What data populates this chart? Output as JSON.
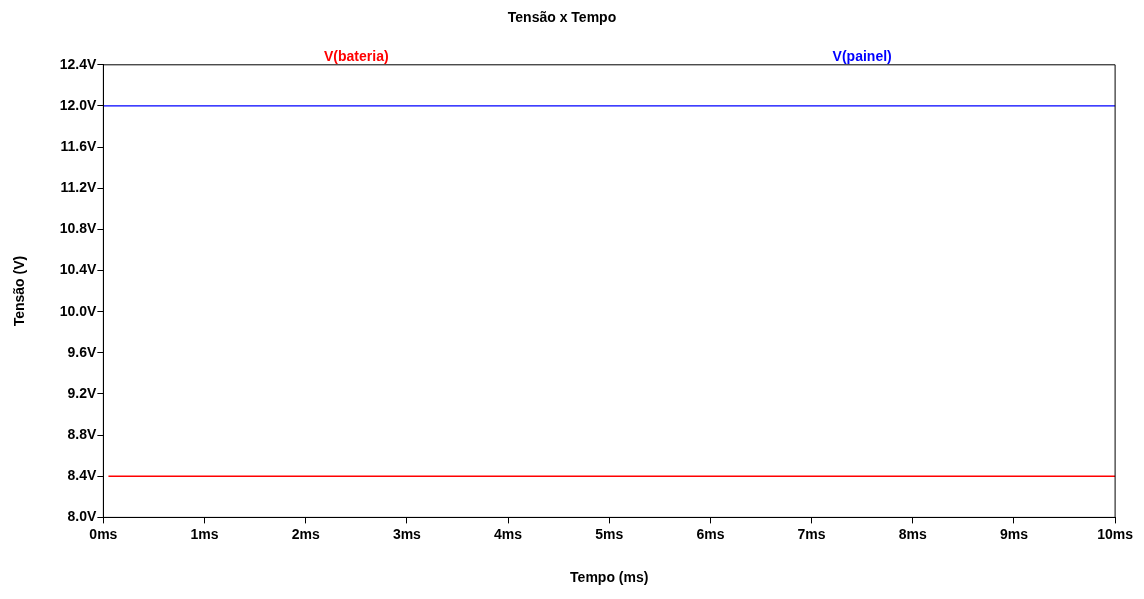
{
  "chart_data": {
    "type": "line",
    "title": "Tensão x Tempo",
    "xlabel": "Tempo (ms)",
    "ylabel": "Tensão (V)",
    "xlim": [
      0,
      10
    ],
    "xticks": [
      {
        "value": 0,
        "label": "0ms"
      },
      {
        "value": 1,
        "label": "1ms"
      },
      {
        "value": 2,
        "label": "2ms"
      },
      {
        "value": 3,
        "label": "3ms"
      },
      {
        "value": 4,
        "label": "4ms"
      },
      {
        "value": 5,
        "label": "5ms"
      },
      {
        "value": 6,
        "label": "6ms"
      },
      {
        "value": 7,
        "label": "7ms"
      },
      {
        "value": 8,
        "label": "8ms"
      },
      {
        "value": 9,
        "label": "9ms"
      },
      {
        "value": 10,
        "label": "10ms"
      }
    ],
    "ylim": [
      8.0,
      12.4
    ],
    "yticks": [
      {
        "value": 8.0,
        "label": "8.0V"
      },
      {
        "value": 8.4,
        "label": "8.4V"
      },
      {
        "value": 8.8,
        "label": "8.8V"
      },
      {
        "value": 9.2,
        "label": "9.2V"
      },
      {
        "value": 9.6,
        "label": "9.6V"
      },
      {
        "value": 10.0,
        "label": "10.0V"
      },
      {
        "value": 10.4,
        "label": "10.4V"
      },
      {
        "value": 10.8,
        "label": "10.8V"
      },
      {
        "value": 11.2,
        "label": "11.2V"
      },
      {
        "value": 11.6,
        "label": "11.6V"
      },
      {
        "value": 12.0,
        "label": "12.0V"
      },
      {
        "value": 12.4,
        "label": "12.4V"
      }
    ],
    "grid": false,
    "legend": "top",
    "marker": "none",
    "line_style": "solid",
    "series": [
      {
        "name": "V(bateria)",
        "color": "#ff0000",
        "x": [
          0.05,
          10
        ],
        "values": [
          8.4,
          8.4
        ]
      },
      {
        "name": "V(painel)",
        "color": "#0000ff",
        "x": [
          0,
          10
        ],
        "values": [
          12.0,
          12.0
        ]
      }
    ]
  }
}
